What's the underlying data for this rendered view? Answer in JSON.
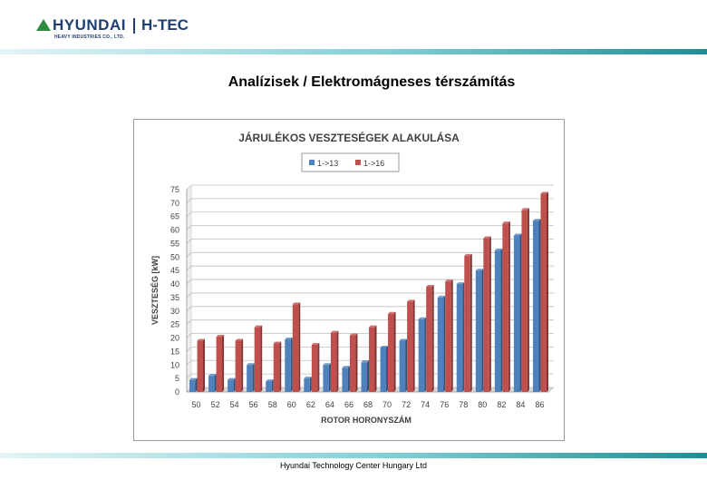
{
  "header": {
    "brand": "HYUNDAI",
    "division": "H-TEC",
    "subtitle": "HEAVY INDUSTRIES CO., LTD."
  },
  "page_title": "Analízisek / Elektromágneses térszámítás",
  "footer": "Hyundai Technology Center Hungary Ltd",
  "chart_data": {
    "type": "bar",
    "title": "JÁRULÉKOS VESZTESÉGEK ALAKULÁSA",
    "xlabel": "ROTOR HORONYSZÁM",
    "ylabel": "VESZTESÉG [kW]",
    "ylim": [
      0,
      75
    ],
    "yticks": [
      0,
      5,
      10,
      15,
      20,
      25,
      30,
      35,
      40,
      45,
      50,
      55,
      60,
      65,
      70,
      75
    ],
    "grid": true,
    "legend_position": "top",
    "categories": [
      "50",
      "52",
      "54",
      "56",
      "58",
      "60",
      "62",
      "64",
      "66",
      "68",
      "70",
      "72",
      "74",
      "76",
      "78",
      "80",
      "82",
      "84",
      "86"
    ],
    "series": [
      {
        "name": "1->13",
        "color": "#4f81bd",
        "values": [
          4.5,
          6,
          4.5,
          10,
          4,
          19.5,
          5,
          10,
          9,
          11,
          16.5,
          19,
          27,
          35,
          40,
          45,
          52.5,
          58,
          63.5
        ]
      },
      {
        "name": "1->16",
        "color": "#c0504d",
        "values": [
          19,
          20.5,
          19,
          24,
          18,
          32.5,
          17.5,
          22,
          21,
          24,
          29,
          33.5,
          39,
          41,
          50.5,
          57,
          62.5,
          67.5,
          73.5
        ]
      }
    ]
  }
}
